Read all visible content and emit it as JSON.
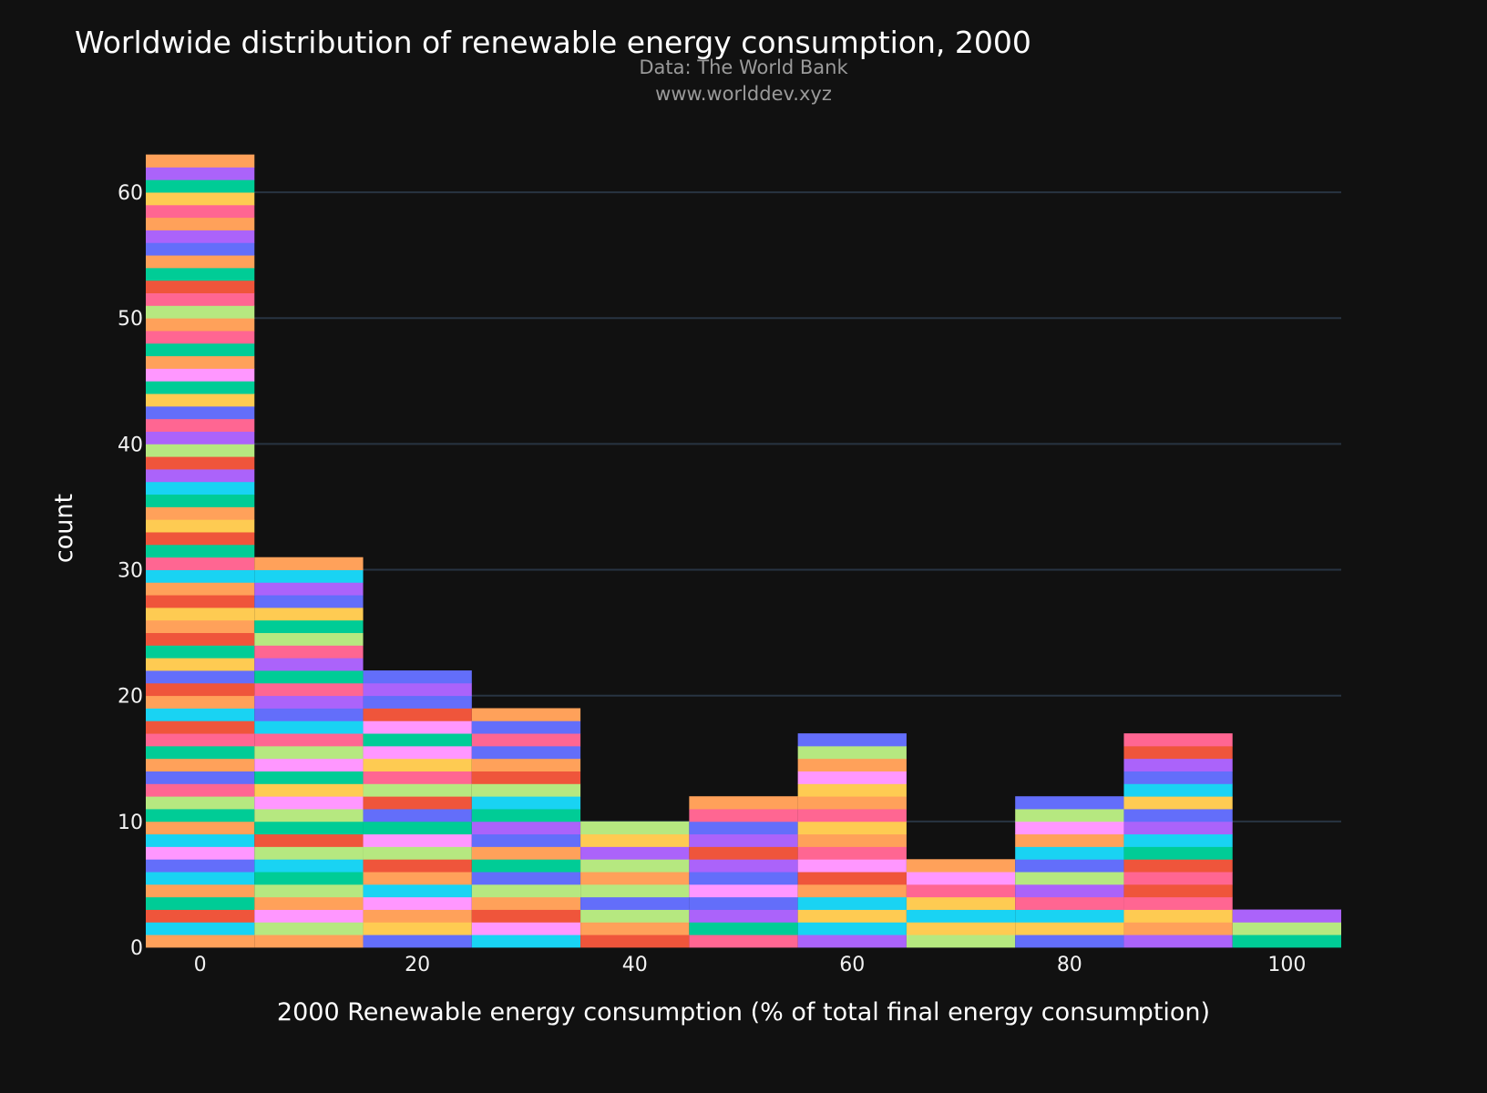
{
  "chart_data": {
    "type": "bar",
    "title": "Worldwide distribution of renewable energy consumption, 2000",
    "subtitle_lines": [
      "Data: The World Bank",
      "www.worlddev.xyz"
    ],
    "xlabel": "2000 Renewable energy consumption (% of total final energy consumption)",
    "ylabel": "count",
    "bin_centers": [
      0,
      10,
      20,
      30,
      40,
      50,
      60,
      70,
      80,
      90,
      100
    ],
    "bin_width": 10,
    "values": [
      63,
      31,
      22,
      19,
      10,
      12,
      17,
      7,
      12,
      17,
      3
    ],
    "xlim": [
      -5,
      105
    ],
    "ylim": [
      0,
      65
    ],
    "x_ticks": [
      0,
      20,
      40,
      60,
      80,
      100
    ],
    "y_ticks": [
      0,
      10,
      20,
      30,
      40,
      50,
      60
    ],
    "grid": true,
    "stacked_colors": [
      "#636efa",
      "#EF553B",
      "#00cc96",
      "#ab63fa",
      "#FFA15A",
      "#19d3f3",
      "#FF6692",
      "#B6E880",
      "#FF97FF",
      "#FECB52"
    ]
  }
}
